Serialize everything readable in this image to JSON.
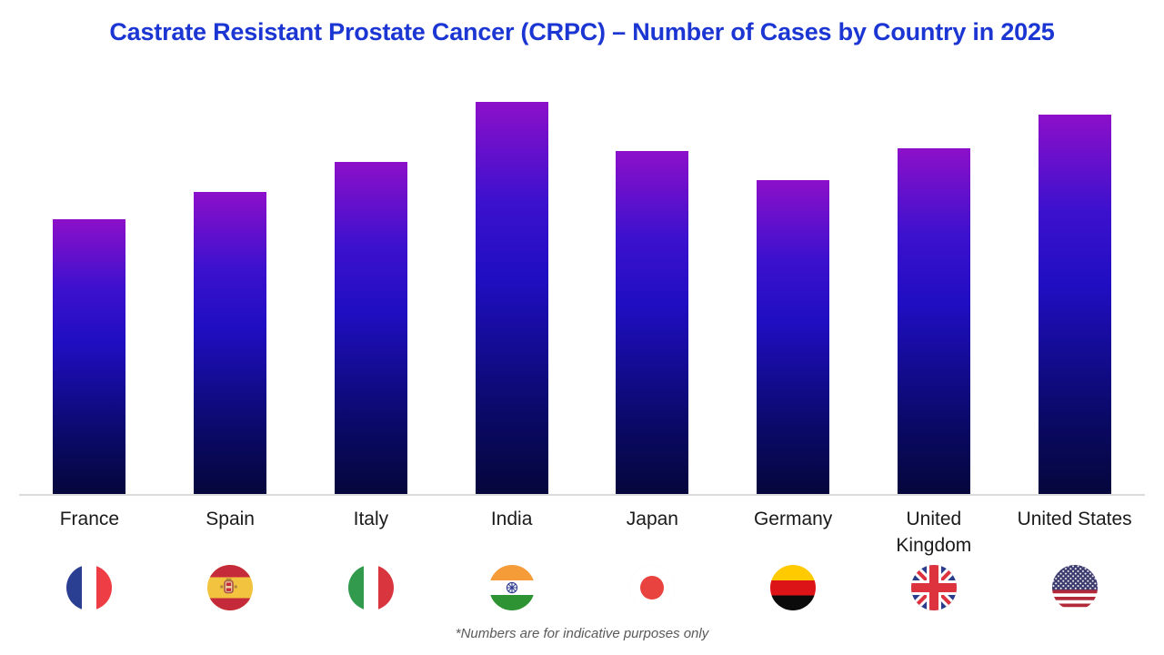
{
  "header": {
    "title": "Castrate Resistant Prostate Cancer (CRPC) – Number of Cases by Country in 2025",
    "title_color": "#1B36D2"
  },
  "chart_data": {
    "type": "bar",
    "title": "Castrate Resistant Prostate Cancer (CRPC) – Number of Cases by Country in 2025",
    "categories": [
      "France",
      "Spain",
      "Italy",
      "India",
      "Japan",
      "Germany",
      "United Kingdom",
      "United States"
    ],
    "values_relative_pct_of_max": [
      70,
      77.1,
      84.7,
      100,
      87.5,
      80,
      88.1,
      96.8
    ],
    "value_labels_shown": false,
    "xlabel": "",
    "ylabel": "",
    "y_axis": {
      "visible": false,
      "gridlines": false,
      "tick_labels": []
    },
    "legend": {
      "visible": false
    },
    "bar_gradient_top_to_bottom": [
      "#8D10C9",
      "#3D11CE",
      "#1F0EC2",
      "#0A0966",
      "#05063C"
    ],
    "baseline_color": "#DBDBDB",
    "flag_icons": [
      "france-flag-icon",
      "spain-flag-icon",
      "italy-flag-icon",
      "india-flag-icon",
      "japan-flag-icon",
      "germany-flag-icon",
      "uk-flag-icon",
      "us-flag-icon"
    ]
  },
  "x_axis": {
    "labels": [
      "France",
      "Spain",
      "Italy",
      "India",
      "Japan",
      "Germany",
      "United\nKingdom",
      "United States"
    ],
    "label_color": "#1A1A1A"
  },
  "footnote": {
    "text": "*Numbers are for indicative purposes only",
    "color": "#595959"
  }
}
